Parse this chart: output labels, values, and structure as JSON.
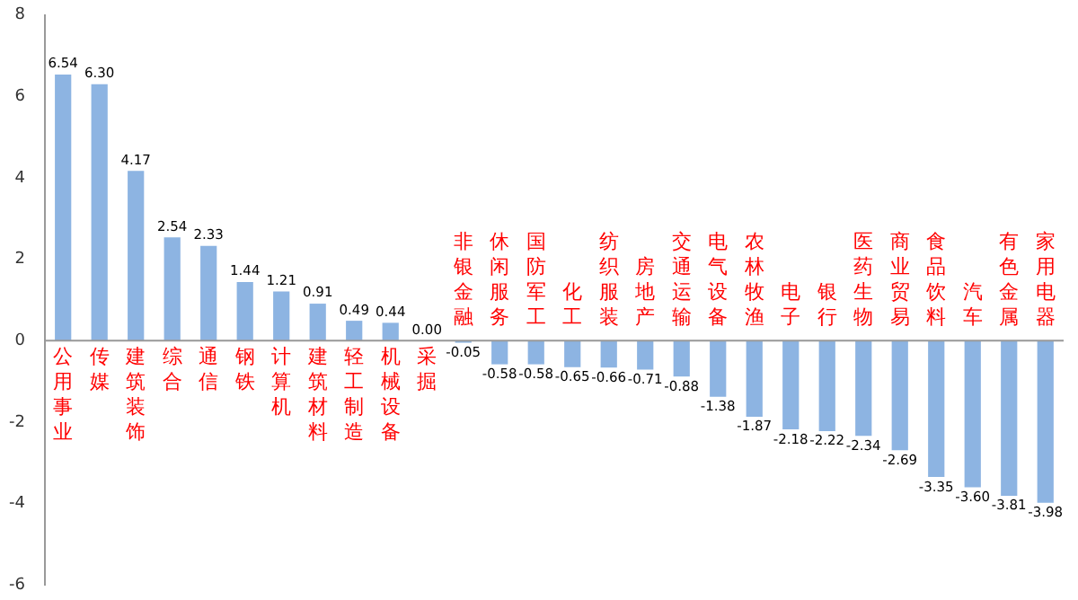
{
  "chart_data": {
    "type": "bar",
    "categories": [
      "公用事业",
      "传媒",
      "建筑装饰",
      "综合",
      "通信",
      "钢铁",
      "计算机",
      "建筑材料",
      "轻工制造",
      "机械设备",
      "采掘",
      "非银金融",
      "休闲服务",
      "国防军工",
      "化工",
      "纺织服装",
      "房地产",
      "交通运输",
      "电气设备",
      "农林牧渔",
      "电子",
      "银行",
      "医药生物",
      "商业贸易",
      "食品饮料",
      "汽车",
      "有色金属",
      "家用电器"
    ],
    "values": [
      6.54,
      6.3,
      4.17,
      2.54,
      2.33,
      1.44,
      1.21,
      0.91,
      0.49,
      0.44,
      0.0,
      -0.05,
      -0.58,
      -0.58,
      -0.65,
      -0.66,
      -0.71,
      -0.88,
      -1.38,
      -1.87,
      -2.18,
      -2.22,
      -2.34,
      -2.69,
      -3.35,
      -3.6,
      -3.81,
      -3.98
    ],
    "value_labels": [
      "6.54",
      "6.30",
      "4.17",
      "2.54",
      "2.33",
      "1.44",
      "1.21",
      "0.91",
      "0.49",
      "0.44",
      "0.00",
      "-0.05",
      "-0.58",
      "-0.58",
      "-0.65",
      "-0.66",
      "-0.71",
      "-0.88",
      "-1.38",
      "-1.87",
      "-2.18",
      "-2.22",
      "-2.34",
      "-2.69",
      "-3.35",
      "-3.60",
      "-3.81",
      "-3.98"
    ],
    "color": "#8db4e2",
    "ylim": [
      -6,
      8
    ],
    "yticks": [
      -6,
      -4,
      -2,
      0,
      2,
      4,
      6,
      8
    ],
    "grid": false,
    "legend": false
  }
}
